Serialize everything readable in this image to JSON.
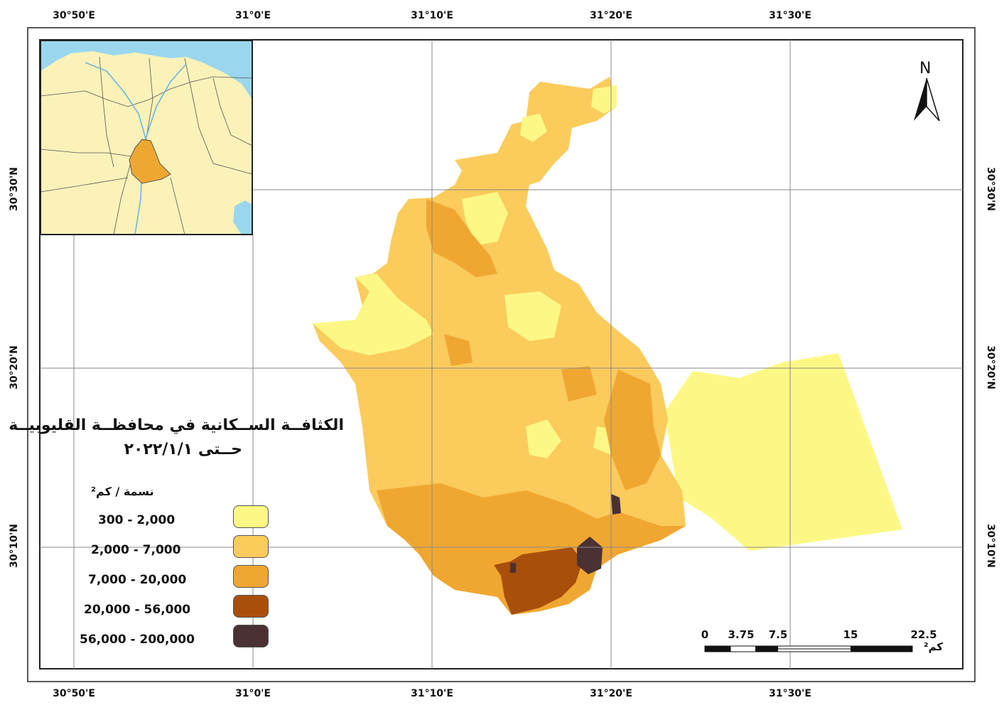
{
  "map": {
    "title_line1": "الكثافــة الســكانية في محافظــة القليوبيــة",
    "title_line2": "حــتى ٢٠٢٢/١/١",
    "north_label": "N",
    "graticule": {
      "lon_labels": [
        "30°50'E",
        "31°0'E",
        "31°10'E",
        "31°20'E",
        "31°30'E"
      ],
      "lat_labels": [
        "30°30'N",
        "30°20'N",
        "30°10'N"
      ]
    },
    "legend": {
      "title": "نسمة / كم²",
      "classes": [
        {
          "label": "300 - 2,000",
          "color": "#fdf885"
        },
        {
          "label": "2,000 - 7,000",
          "color": "#fbcb5c"
        },
        {
          "label": "7,000 - 20,000",
          "color": "#f0a731"
        },
        {
          "label": "20,000 - 56,000",
          "color": "#a84f0b"
        },
        {
          "label": "56,000 - 200,000",
          "color": "#4a3134"
        }
      ]
    },
    "scale_bar": {
      "values": [
        "0",
        "3.75",
        "7.5",
        "15",
        "22.5"
      ],
      "unit": "كم²"
    },
    "colors": {
      "inset_land": "#fbf2b9",
      "inset_water": "#9ad7ee",
      "inset_region": "#f0a731"
    }
  }
}
